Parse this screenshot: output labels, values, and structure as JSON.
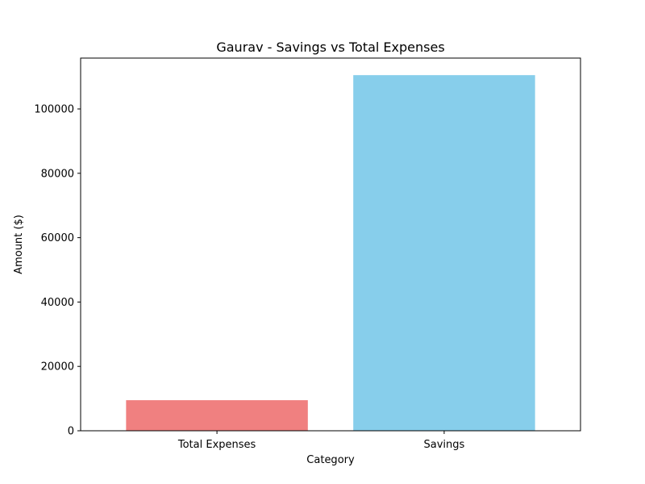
{
  "chart_data": {
    "type": "bar",
    "title": "Gaurav - Savings vs Total Expenses",
    "xlabel": "Category",
    "ylabel": "Amount ($)",
    "categories": [
      "Total Expenses",
      "Savings"
    ],
    "values": [
      9500,
      110500
    ],
    "colors": [
      "#f08080",
      "#87ceeb"
    ],
    "ylim": [
      0,
      115800
    ],
    "yticks": [
      0,
      20000,
      40000,
      60000,
      80000,
      100000
    ],
    "ytick_labels": [
      "0",
      "20000",
      "40000",
      "60000",
      "80000",
      "100000"
    ],
    "grid": false,
    "legend": "none"
  }
}
